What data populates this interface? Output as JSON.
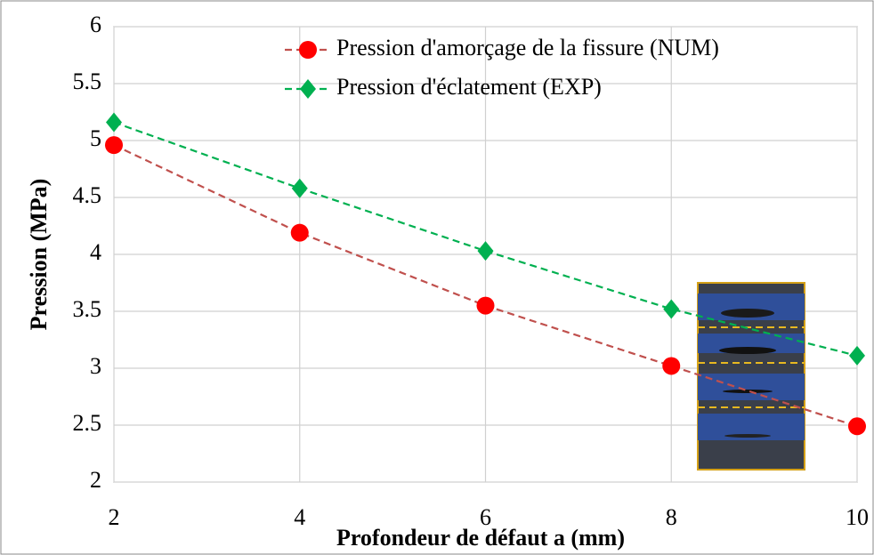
{
  "chart_data": {
    "type": "line",
    "x_label": "Profondeur de défaut a (mm)",
    "y_label": "Pression (MPa)",
    "x": [
      2,
      4,
      6,
      8,
      10
    ],
    "series": [
      {
        "name": "Pression d'amorçage de la fissure (NUM)",
        "color": "#c0504d",
        "marker_color": "#ff0000",
        "marker": "circle",
        "values": [
          4.96,
          4.19,
          3.55,
          3.02,
          2.49
        ]
      },
      {
        "name": "Pression d'éclatement (EXP)",
        "color": "#00b050",
        "marker_color": "#00b050",
        "marker": "diamond",
        "values": [
          5.16,
          4.58,
          4.03,
          3.52,
          3.11
        ]
      }
    ],
    "xlim": [
      2,
      10
    ],
    "xticks": [
      2,
      4,
      6,
      8,
      10
    ],
    "ylim": [
      2,
      6
    ],
    "yticks": [
      2,
      2.5,
      3,
      3.5,
      4,
      4.5,
      5,
      5.5,
      6
    ],
    "grid": true,
    "legend": "top-right"
  }
}
